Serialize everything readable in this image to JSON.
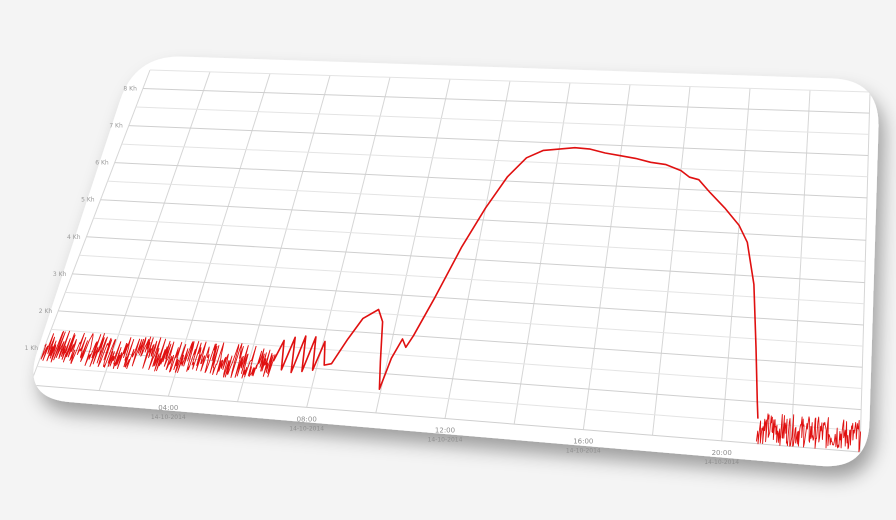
{
  "chart_data": {
    "type": "line",
    "title": "",
    "xlabel": "",
    "ylabel": "",
    "grid": true,
    "legend": "none",
    "x_ticks": [
      {
        "time": "04:00",
        "date": "14-10-2014",
        "hour": 4
      },
      {
        "time": "08:00",
        "date": "14-10-2014",
        "hour": 8
      },
      {
        "time": "12:00",
        "date": "14-10-2014",
        "hour": 12
      },
      {
        "time": "16:00",
        "date": "14-10-2014",
        "hour": 16
      },
      {
        "time": "20:00",
        "date": "14-10-2014",
        "hour": 20
      }
    ],
    "y_ticks": [
      "8 Kh",
      "7 Kh",
      "6 Kh",
      "5 Kh",
      "4 Kh",
      "3 Kh",
      "2 Kh",
      "1 Kh"
    ],
    "xlim": [
      0,
      24
    ],
    "ylim": [
      0,
      8.5
    ],
    "series": [
      {
        "color": "#e01010",
        "noise_segments": [
          {
            "x_start": 0.0,
            "x_end": 6.7,
            "center": 1.05,
            "amplitude": 0.45
          },
          {
            "x_start": 21.0,
            "x_end": 24.0,
            "center": 0.38,
            "amplitude": 0.38
          }
        ],
        "points": [
          [
            6.7,
            1.1
          ],
          [
            6.85,
            1.65
          ],
          [
            7.0,
            0.9
          ],
          [
            7.15,
            1.75
          ],
          [
            7.3,
            0.85
          ],
          [
            7.45,
            1.8
          ],
          [
            7.6,
            0.9
          ],
          [
            7.75,
            1.8
          ],
          [
            7.9,
            0.95
          ],
          [
            8.05,
            1.7
          ],
          [
            8.2,
            1.1
          ],
          [
            8.4,
            1.15
          ],
          [
            8.7,
            1.8
          ],
          [
            9.0,
            2.35
          ],
          [
            9.4,
            2.6
          ],
          [
            9.6,
            2.3
          ],
          [
            9.8,
            1.3
          ],
          [
            9.95,
            0.6
          ],
          [
            10.1,
            1.4
          ],
          [
            10.3,
            1.9
          ],
          [
            10.45,
            1.7
          ],
          [
            10.6,
            2.0
          ],
          [
            11.0,
            3.0
          ],
          [
            11.5,
            4.3
          ],
          [
            12.0,
            5.3
          ],
          [
            12.5,
            6.1
          ],
          [
            13.0,
            6.6
          ],
          [
            13.5,
            6.8
          ],
          [
            14.0,
            6.85
          ],
          [
            14.5,
            6.9
          ],
          [
            15.0,
            6.88
          ],
          [
            15.5,
            6.8
          ],
          [
            16.0,
            6.75
          ],
          [
            16.5,
            6.7
          ],
          [
            17.0,
            6.62
          ],
          [
            17.5,
            6.58
          ],
          [
            18.0,
            6.45
          ],
          [
            18.3,
            6.3
          ],
          [
            18.6,
            6.25
          ],
          [
            19.0,
            5.95
          ],
          [
            19.5,
            5.6
          ],
          [
            20.0,
            5.2
          ],
          [
            20.3,
            4.8
          ],
          [
            20.6,
            3.8
          ],
          [
            20.8,
            2.3
          ],
          [
            20.95,
            1.0
          ],
          [
            21.0,
            0.6
          ]
        ]
      }
    ]
  }
}
